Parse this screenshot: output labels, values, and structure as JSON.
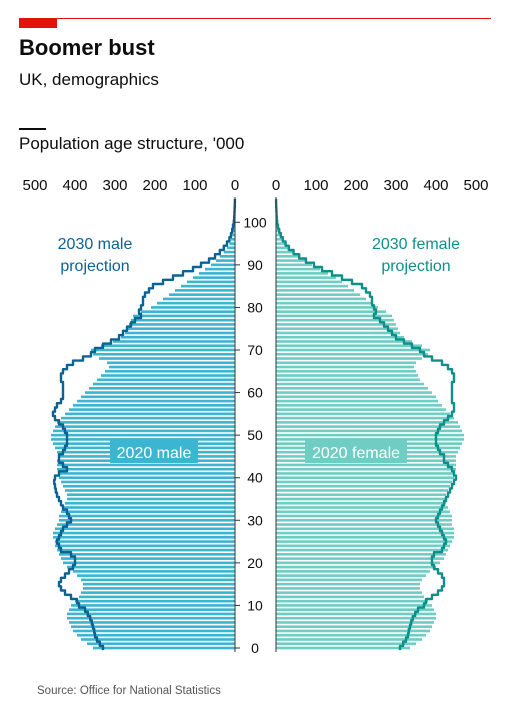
{
  "header": {
    "title": "Boomer bust",
    "subtitle": "UK, demographics",
    "chart_title": "Population age structure, '000",
    "source": "Source: Office for National Statistics"
  },
  "colors": {
    "brand_red": "#e3120b",
    "male_fill": "#3cb5d0",
    "male_line": "#0c6391",
    "female_fill": "#6fcdc4",
    "female_line": "#0f8f8a",
    "axis": "#333333"
  },
  "chart_data": {
    "type": "bar",
    "subtype": "population-pyramid",
    "x_tick_labels": [
      "500",
      "400",
      "300",
      "200",
      "100",
      "0",
      "0",
      "100",
      "200",
      "300",
      "400",
      "500"
    ],
    "x_ticks": [
      0,
      100,
      200,
      300,
      400,
      500
    ],
    "xlim": [
      0,
      500
    ],
    "ylim": [
      0,
      105
    ],
    "y_ticks": [
      0,
      10,
      20,
      30,
      40,
      50,
      60,
      70,
      80,
      90,
      100
    ],
    "age_note": "ages 0 to 105, one bar per single year of age",
    "series_labels": {
      "male_2020": "2020 male",
      "female_2020": "2020 female",
      "male_2030": "2030 male projection",
      "female_2030": "2030 female projection"
    },
    "male_2020": [
      355,
      370,
      385,
      395,
      405,
      410,
      415,
      420,
      420,
      415,
      410,
      400,
      390,
      385,
      380,
      380,
      385,
      395,
      405,
      420,
      430,
      435,
      440,
      445,
      450,
      450,
      455,
      455,
      450,
      445,
      440,
      440,
      435,
      430,
      425,
      420,
      420,
      425,
      430,
      435,
      440,
      440,
      445,
      445,
      445,
      440,
      445,
      450,
      455,
      460,
      460,
      455,
      450,
      445,
      435,
      425,
      415,
      405,
      395,
      385,
      375,
      365,
      355,
      345,
      335,
      325,
      315,
      320,
      340,
      355,
      360,
      335,
      305,
      285,
      275,
      270,
      265,
      260,
      255,
      235,
      210,
      195,
      180,
      165,
      150,
      135,
      120,
      105,
      90,
      75,
      60,
      48,
      38,
      28,
      20,
      14,
      10,
      7,
      5,
      3,
      2,
      1.5,
      1,
      0.5,
      0.3,
      0.2
    ],
    "female_2020": [
      335,
      350,
      365,
      375,
      385,
      390,
      395,
      400,
      400,
      395,
      390,
      380,
      370,
      365,
      360,
      360,
      365,
      375,
      385,
      400,
      410,
      420,
      425,
      430,
      435,
      440,
      445,
      445,
      445,
      440,
      440,
      440,
      435,
      430,
      425,
      425,
      425,
      430,
      435,
      440,
      445,
      445,
      450,
      450,
      450,
      450,
      455,
      460,
      465,
      470,
      470,
      465,
      460,
      455,
      445,
      435,
      425,
      415,
      405,
      400,
      390,
      380,
      370,
      360,
      355,
      350,
      345,
      350,
      365,
      380,
      385,
      365,
      340,
      320,
      310,
      305,
      300,
      295,
      290,
      275,
      255,
      240,
      225,
      210,
      195,
      180,
      165,
      150,
      130,
      110,
      90,
      75,
      60,
      45,
      35,
      25,
      18,
      12,
      8,
      5,
      3,
      2,
      1.5,
      1,
      0.5,
      0.3
    ],
    "male_2030": [
      330,
      338,
      345,
      350,
      352,
      355,
      358,
      362,
      368,
      375,
      390,
      395,
      410,
      425,
      435,
      440,
      435,
      425,
      415,
      405,
      400,
      400,
      410,
      435,
      440,
      445,
      440,
      435,
      430,
      420,
      410,
      415,
      420,
      430,
      435,
      440,
      445,
      448,
      450,
      452,
      450,
      440,
      420,
      430,
      440,
      440,
      430,
      425,
      420,
      420,
      420,
      425,
      430,
      440,
      450,
      455,
      450,
      445,
      435,
      430,
      430,
      430,
      430,
      435,
      435,
      430,
      420,
      405,
      380,
      360,
      350,
      330,
      310,
      290,
      280,
      270,
      260,
      250,
      235,
      240,
      235,
      230,
      230,
      225,
      215,
      205,
      180,
      155,
      130,
      105,
      85,
      65,
      50,
      38,
      28,
      20,
      14,
      10,
      7,
      5,
      3,
      2,
      1.5,
      1,
      0.5,
      0.3
    ],
    "female_2030": [
      310,
      318,
      325,
      330,
      332,
      335,
      338,
      342,
      348,
      355,
      370,
      375,
      390,
      405,
      415,
      420,
      420,
      415,
      405,
      395,
      390,
      390,
      395,
      415,
      420,
      425,
      420,
      415,
      410,
      405,
      400,
      405,
      410,
      415,
      420,
      425,
      430,
      435,
      440,
      445,
      450,
      445,
      440,
      430,
      420,
      420,
      410,
      405,
      400,
      400,
      400,
      405,
      410,
      420,
      430,
      440,
      445,
      445,
      440,
      440,
      440,
      440,
      440,
      445,
      445,
      440,
      430,
      415,
      390,
      370,
      360,
      340,
      320,
      300,
      290,
      280,
      270,
      260,
      245,
      250,
      245,
      240,
      240,
      235,
      225,
      215,
      190,
      165,
      140,
      115,
      95,
      75,
      58,
      44,
      32,
      24,
      17,
      12,
      8,
      5,
      3,
      2,
      1.5,
      1,
      0.5,
      0.3
    ]
  }
}
